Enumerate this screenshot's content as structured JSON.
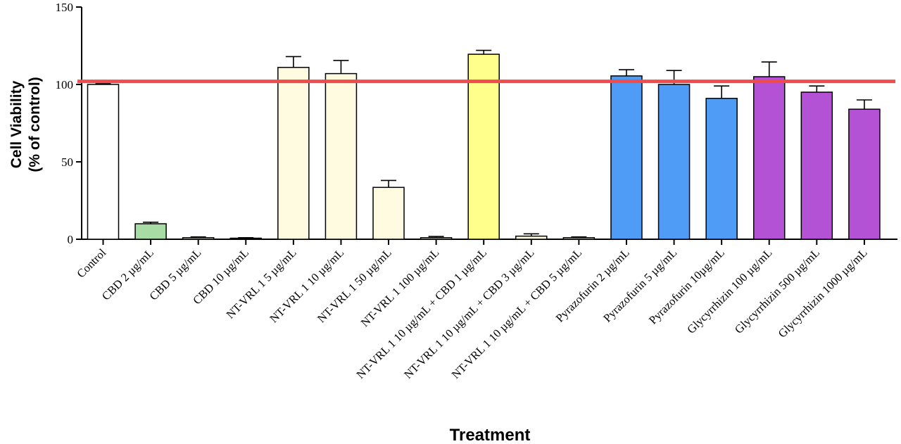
{
  "chart_data": {
    "type": "bar",
    "xlabel": "Treatment",
    "ylabel_lines": [
      "Cell Viability",
      "(% of control)"
    ],
    "ylim": [
      0,
      150
    ],
    "yticks": [
      0,
      50,
      100,
      150
    ],
    "reference_line": {
      "value": 102,
      "color": "#f24b4b"
    },
    "categories": [
      "Control",
      "CBD 2 µg/mL",
      "CBD 5 µg/mL",
      "CBD 10 µg/mL",
      "NT-VRL 1 5 µg/mL",
      "NT-VRL 1 10 µg/mL",
      "NT-VRL 1 50 µg/mL",
      "NT-VRL 1 100 µg/mL",
      "NT-VRL 1 10 µg/mL + CBD 1 µg/mL",
      "NT-VRL 1 10 µg/mL + CBD 3 µg/mL",
      "NT-VRL 1 10 µg/mL + CBD 5 µg/mL",
      "Pyrazofurin 2 µg/mL",
      "Pyrazofurin 5 µg/mL",
      "Pyrazofurin 10µg/mL",
      "Glycyrrhizin 100 µg/mL",
      "Glycyrrhizin 500 µg/mL",
      "Glycyrrhizin 1000 µg/mL"
    ],
    "values": [
      100,
      10,
      1,
      0.5,
      111,
      107,
      33.5,
      1,
      119.5,
      2,
      1,
      105.5,
      100,
      91,
      105,
      95,
      84
    ],
    "errors": [
      0.5,
      1,
      0.5,
      0.5,
      7,
      8.5,
      4.5,
      0.8,
      2.5,
      1.5,
      0.5,
      4,
      9,
      8,
      9.5,
      4,
      6
    ],
    "colors": [
      "#ffffff",
      "#a8dca5",
      "#fffbe0",
      "#fffbe0",
      "#fffbe0",
      "#fffbe0",
      "#fffbe0",
      "#fffbe0",
      "#ffff8c",
      "#fffbe0",
      "#fffbe0",
      "#4f9cf6",
      "#4f9cf6",
      "#4f9cf6",
      "#b452d6",
      "#b452d6",
      "#b452d6"
    ]
  }
}
